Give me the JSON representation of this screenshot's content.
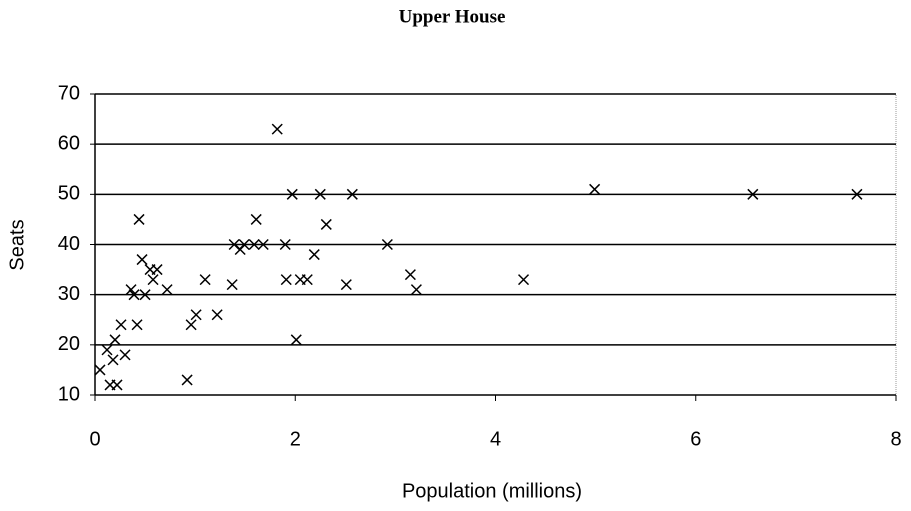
{
  "chart_data": {
    "type": "scatter",
    "title": "Upper House",
    "xlabel": "Population (millions)",
    "ylabel": "Seats",
    "xlim": [
      0,
      8
    ],
    "xticks": [
      0,
      2,
      4,
      6,
      8
    ],
    "ylim": [
      10,
      70
    ],
    "yticks": [
      10,
      20,
      30,
      40,
      50,
      60,
      70
    ],
    "grid": true,
    "color": "#000000",
    "x": [
      0.05,
      0.12,
      0.15,
      0.22,
      0.18,
      0.2,
      0.26,
      0.3,
      0.36,
      0.39,
      0.42,
      0.44,
      0.47,
      0.5,
      0.55,
      0.58,
      0.62,
      0.72,
      0.92,
      0.96,
      1.01,
      1.1,
      1.22,
      1.37,
      1.39,
      1.45,
      1.49,
      1.59,
      1.61,
      1.68,
      1.82,
      1.9,
      1.91,
      1.97,
      2.01,
      2.05,
      2.12,
      2.19,
      2.25,
      2.31,
      2.51,
      2.57,
      2.92,
      3.15,
      3.21,
      4.28,
      4.99,
      6.57,
      7.61
    ],
    "values": [
      15,
      19,
      12,
      12,
      17,
      21,
      24,
      18,
      31,
      30,
      24,
      45,
      37,
      30,
      35,
      33,
      35,
      31,
      13,
      24,
      26,
      33,
      26,
      32,
      40,
      39,
      40,
      40,
      45,
      40,
      63,
      40,
      33,
      50,
      21,
      33,
      33,
      38,
      50,
      44,
      32,
      50,
      40,
      34,
      31,
      33,
      51,
      50,
      50
    ]
  }
}
